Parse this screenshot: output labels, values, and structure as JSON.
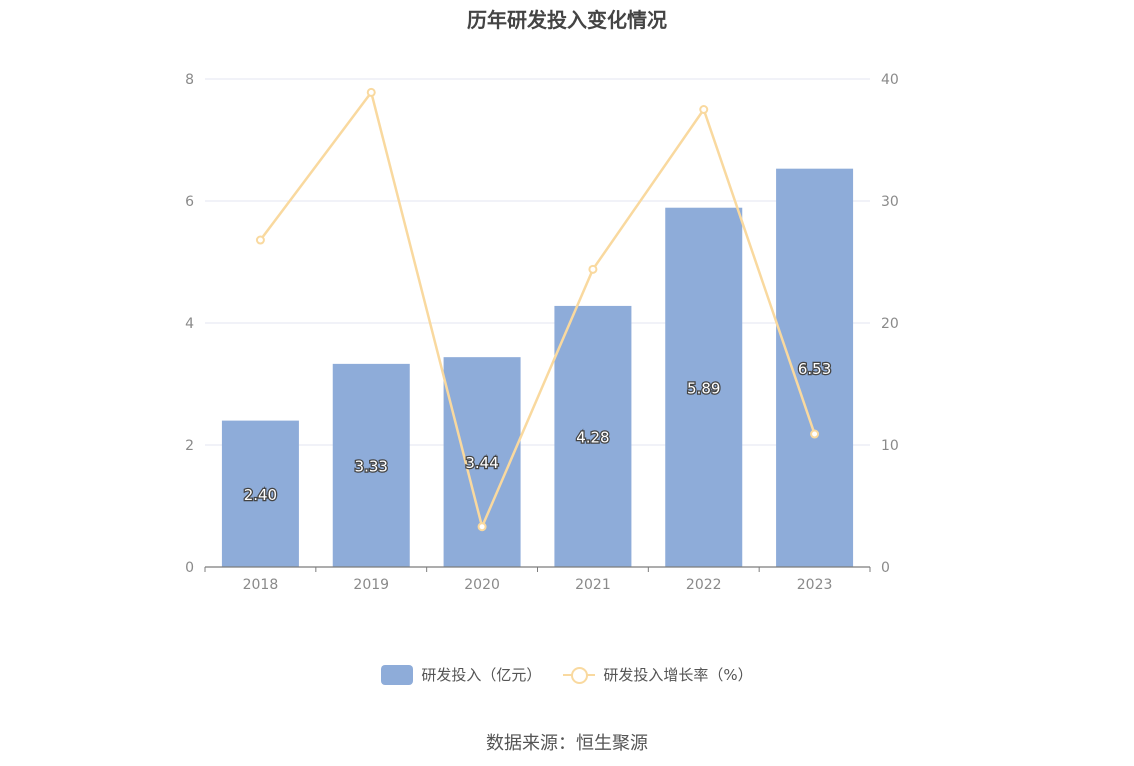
{
  "chart_data": {
    "type": "bar",
    "title": "历年研发投入变化情况",
    "categories": [
      "2018",
      "2019",
      "2020",
      "2021",
      "2022",
      "2023"
    ],
    "series": [
      {
        "name": "研发投入（亿元）",
        "type": "bar",
        "axis": "left",
        "color": "#8eacd9",
        "values": [
          2.4,
          3.33,
          3.44,
          4.28,
          5.89,
          6.53
        ],
        "labels": [
          "2.40",
          "3.33",
          "3.44",
          "4.28",
          "5.89",
          "6.53"
        ]
      },
      {
        "name": "研发投入增长率（%）",
        "type": "line",
        "axis": "right",
        "color": "#f9d99f",
        "values": [
          26.8,
          38.9,
          3.3,
          24.4,
          37.5,
          10.9
        ]
      }
    ],
    "y_left": {
      "ylim": [
        0,
        8
      ],
      "ticks": [
        "0",
        "2",
        "4",
        "6",
        "8"
      ]
    },
    "y_right": {
      "ylim": [
        0,
        40
      ],
      "ticks": [
        "0",
        "10",
        "20",
        "30",
        "40"
      ]
    },
    "grid": true,
    "legend_position": "bottom-center",
    "source": "数据来源：恒生聚源"
  }
}
